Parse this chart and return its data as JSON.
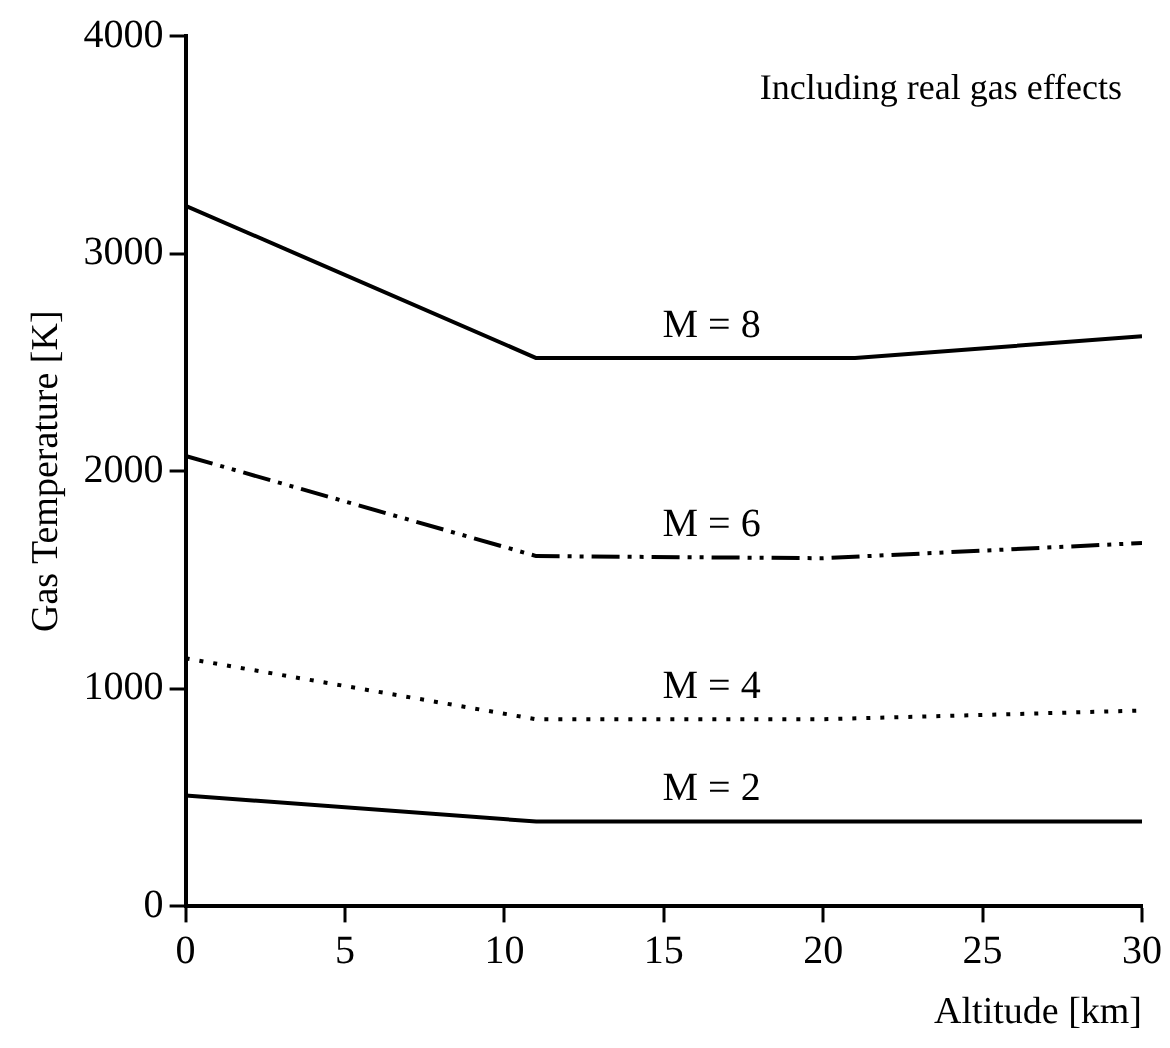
{
  "chart_data": {
    "type": "line",
    "xlabel": "Altitude [km]",
    "ylabel": "Gas Temperature [K]",
    "annotations": [
      "Including real gas effects"
    ],
    "xlim": [
      0,
      30
    ],
    "xticks": [
      0,
      5,
      10,
      15,
      20,
      25,
      30
    ],
    "ylim": [
      0,
      4000
    ],
    "yticks": [
      0,
      1000,
      2000,
      3000,
      4000
    ],
    "grid": false,
    "legend": false,
    "marker": "none",
    "series": [
      {
        "name": "M = 8",
        "color": "#000000",
        "line_style": "solid",
        "x": [
          0,
          11,
          21,
          30
        ],
        "values": [
          3220,
          2520,
          2520,
          2620
        ]
      },
      {
        "name": "M = 6",
        "color": "#000000",
        "line_style": "dashed",
        "x": [
          0,
          11,
          20,
          30
        ],
        "values": [
          2070,
          1610,
          1600,
          1670
        ]
      },
      {
        "name": "M = 4",
        "color": "#000000",
        "line_style": "dotted",
        "x": [
          0,
          11,
          20,
          30
        ],
        "values": [
          1140,
          860,
          860,
          900
        ]
      },
      {
        "name": "M = 2",
        "color": "#000000",
        "line_style": "solid",
        "x": [
          0,
          11,
          20,
          30
        ],
        "values": [
          510,
          390,
          390,
          390
        ]
      }
    ]
  }
}
